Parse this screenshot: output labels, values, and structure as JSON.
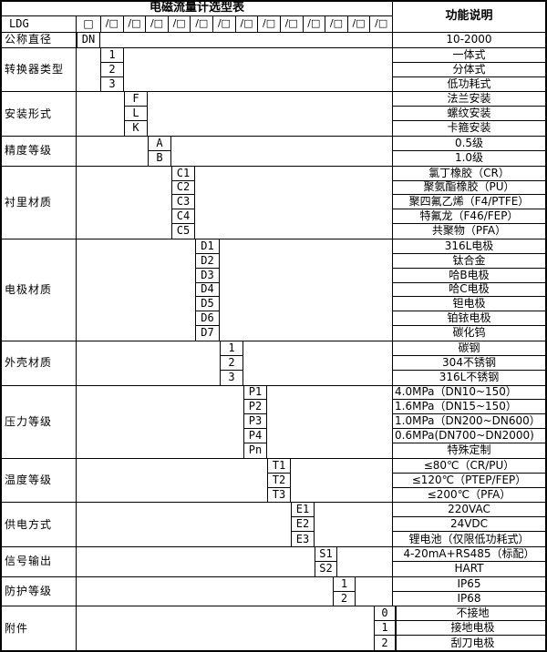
{
  "title": "电磁流量计选型表",
  "function_header": "功能说明",
  "model_prefix": "LDG",
  "model_box": "□",
  "model_slot": "/□",
  "model_slot_count": 13,
  "colors": {
    "border": "#000000",
    "background": "#ffffff",
    "text": "#000000"
  },
  "sections": [
    {
      "label": "公称直径",
      "rows": [
        {
          "code": "DN",
          "desc": "10-2000"
        }
      ]
    },
    {
      "label": "转换器类型",
      "rows": [
        {
          "code": "1",
          "desc": "一体式"
        },
        {
          "code": "2",
          "desc": "分体式"
        },
        {
          "code": "3",
          "desc": "低功耗式"
        }
      ]
    },
    {
      "label": "安装形式",
      "rows": [
        {
          "code": "F",
          "desc": "法兰安装"
        },
        {
          "code": "L",
          "desc": "螺纹安装"
        },
        {
          "code": "K",
          "desc": "卡箍安装"
        }
      ]
    },
    {
      "label": "精度等级",
      "rows": [
        {
          "code": "A",
          "desc": "0.5级"
        },
        {
          "code": "B",
          "desc": "1.0级"
        }
      ]
    },
    {
      "label": "衬里材质",
      "rows": [
        {
          "code": "C1",
          "desc": "氯丁橡胶（CR）"
        },
        {
          "code": "C2",
          "desc": "聚氨酯橡胶（PU）"
        },
        {
          "code": "C3",
          "desc": "聚四氟乙烯（F4/PTFE）"
        },
        {
          "code": "C4",
          "desc": "特氟龙（F46/FEP）"
        },
        {
          "code": "C5",
          "desc": "共聚物（PFA）"
        }
      ]
    },
    {
      "label": "电极材质",
      "rows": [
        {
          "code": "D1",
          "desc": "316L电极"
        },
        {
          "code": "D2",
          "desc": "钛合金"
        },
        {
          "code": "D3",
          "desc": "哈B电极"
        },
        {
          "code": "D4",
          "desc": "哈C电极"
        },
        {
          "code": "D5",
          "desc": "钽电极"
        },
        {
          "code": "D6",
          "desc": "铂铱电极"
        },
        {
          "code": "D7",
          "desc": "碳化钨"
        }
      ]
    },
    {
      "label": "外壳材质",
      "rows": [
        {
          "code": "1",
          "desc": "碳钢"
        },
        {
          "code": "2",
          "desc": "304不锈钢"
        },
        {
          "code": "3",
          "desc": "316L不锈钢"
        }
      ]
    },
    {
      "label": "压力等级",
      "rows": [
        {
          "code": "P1",
          "desc": "4.0MPa（DN10~150）"
        },
        {
          "code": "P2",
          "desc": "1.6MPa（DN15~150）"
        },
        {
          "code": "P3",
          "desc": "1.0MPa（DN200~DN600）"
        },
        {
          "code": "P4",
          "desc": "0.6MPa(DN700~DN2000)"
        },
        {
          "code": "Pn",
          "desc": "特殊定制"
        }
      ]
    },
    {
      "label": "温度等级",
      "rows": [
        {
          "code": "T1",
          "desc": "≤80℃（CR/PU）"
        },
        {
          "code": "T2",
          "desc": "≤120℃（PTEP/FEP）"
        },
        {
          "code": "T3",
          "desc": "≤200℃（PFA）"
        }
      ]
    },
    {
      "label": "供电方式",
      "rows": [
        {
          "code": "E1",
          "desc": "220VAC"
        },
        {
          "code": "E2",
          "desc": "24VDC"
        },
        {
          "code": "E3",
          "desc": "锂电池（仅限低功耗式）"
        }
      ]
    },
    {
      "label": "信号输出",
      "rows": [
        {
          "code": "S1",
          "desc": "4-20mA+RS485（标配）"
        },
        {
          "code": "S2",
          "desc": "HART"
        }
      ]
    },
    {
      "label": "防护等级",
      "rows": [
        {
          "code": "1",
          "desc": "IP65"
        },
        {
          "code": "2",
          "desc": "IP68"
        }
      ]
    },
    {
      "label": "附件",
      "rows": [
        {
          "code": "0",
          "desc": "不接地"
        },
        {
          "code": "1",
          "desc": "接地电极"
        },
        {
          "code": "2",
          "desc": "刮刀电极"
        }
      ]
    }
  ]
}
